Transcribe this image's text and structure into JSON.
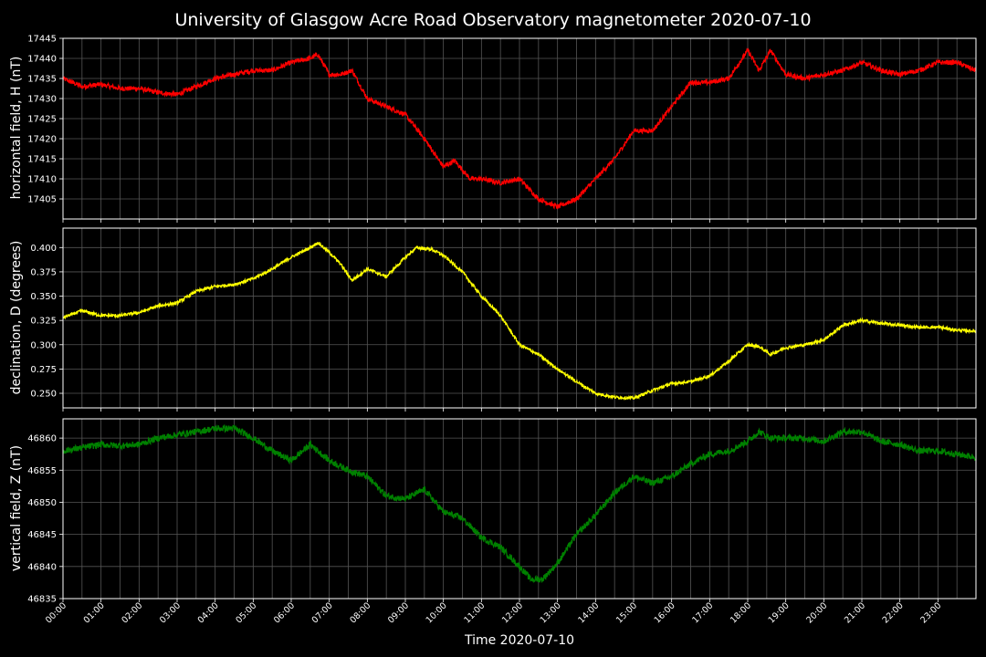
{
  "chart_data": {
    "type": "line",
    "title": "University of Glasgow Acre Road Observatory magnetometer 2020-07-10",
    "xlabel": "Time 2020-07-10",
    "x_ticks": [
      "00:00",
      "01:00",
      "02:00",
      "03:00",
      "04:00",
      "05:00",
      "06:00",
      "07:00",
      "08:00",
      "09:00",
      "10:00",
      "11:00",
      "12:00",
      "13:00",
      "14:00",
      "15:00",
      "16:00",
      "17:00",
      "18:00",
      "19:00",
      "20:00",
      "21:00",
      "22:00",
      "23:00"
    ],
    "x_range_hours": [
      0,
      24
    ],
    "grid": true,
    "panels": [
      {
        "ylabel": "horizontal field, H (nT)",
        "color": "#ff0000",
        "ylim": [
          17400,
          17445
        ],
        "yticks": [
          "17405",
          "17410",
          "17415",
          "17420",
          "17425",
          "17430",
          "17435",
          "17440",
          "17445"
        ],
        "ytick_values": [
          17405,
          17410,
          17415,
          17420,
          17425,
          17430,
          17435,
          17440,
          17445
        ],
        "noise": 0.6,
        "series": [
          {
            "values_hour": [
              0,
              0.5,
              1,
              1.5,
              2,
              2.5,
              3,
              3.5,
              4,
              4.5,
              5,
              5.5,
              6,
              6.5,
              6.7,
              7,
              7.3,
              7.6,
              8,
              8.5,
              9,
              9.5,
              10,
              10.3,
              10.7,
              11,
              11.5,
              12,
              12.5,
              13,
              13.5,
              14,
              14.5,
              15,
              15.5,
              16,
              16.5,
              17,
              17.5,
              18,
              18.3,
              18.6,
              19,
              19.5,
              20,
              20.5,
              21,
              21.5,
              22,
              22.5,
              23,
              23.5,
              24
            ],
            "values": [
              17435,
              17433,
              17433.5,
              17432.5,
              17432.5,
              17431.5,
              17431,
              17433,
              17435,
              17436,
              17437,
              17437,
              17439,
              17440,
              17441,
              17436,
              17436,
              17437,
              17430,
              17428,
              17426,
              17420,
              17413,
              17414.5,
              17410,
              17410,
              17409,
              17410,
              17405,
              17403,
              17405,
              17410,
              17415,
              17422,
              17422,
              17428,
              17434,
              17434,
              17435,
              17442,
              17437,
              17442,
              17436,
              17435,
              17436,
              17437,
              17439,
              17437,
              17436,
              17437,
              17439,
              17439,
              17437
            ]
          }
        ]
      },
      {
        "ylabel": "declination, D (degrees)",
        "color": "#ffff00",
        "ylim": [
          0.235,
          0.42
        ],
        "yticks": [
          "0.250",
          "0.275",
          "0.300",
          "0.325",
          "0.350",
          "0.375",
          "0.400"
        ],
        "ytick_values": [
          0.25,
          0.275,
          0.3,
          0.325,
          0.35,
          0.375,
          0.4
        ],
        "noise": 0.0015,
        "series": [
          {
            "values_hour": [
              0,
              0.5,
              1,
              1.5,
              2,
              2.5,
              3,
              3.5,
              4,
              4.5,
              5,
              5.5,
              6,
              6.5,
              6.7,
              7,
              7.3,
              7.6,
              8,
              8.5,
              9,
              9.3,
              9.7,
              10,
              10.5,
              11,
              11.5,
              12,
              12.5,
              13,
              13.5,
              14,
              14.5,
              15,
              15.5,
              16,
              16.5,
              17,
              17.5,
              18,
              18.3,
              18.6,
              19,
              19.5,
              20,
              20.5,
              21,
              21.5,
              22,
              22.5,
              23,
              23.5,
              24
            ],
            "values": [
              0.328,
              0.335,
              0.33,
              0.33,
              0.333,
              0.34,
              0.343,
              0.355,
              0.36,
              0.362,
              0.368,
              0.378,
              0.39,
              0.4,
              0.405,
              0.395,
              0.383,
              0.366,
              0.378,
              0.37,
              0.39,
              0.4,
              0.398,
              0.392,
              0.375,
              0.35,
              0.33,
              0.3,
              0.29,
              0.275,
              0.262,
              0.25,
              0.246,
              0.245,
              0.253,
              0.26,
              0.262,
              0.268,
              0.283,
              0.3,
              0.298,
              0.29,
              0.297,
              0.3,
              0.305,
              0.32,
              0.325,
              0.322,
              0.32,
              0.318,
              0.318,
              0.315,
              0.314
            ]
          }
        ]
      },
      {
        "ylabel": "vertical field, Z (nT)",
        "color": "#008000",
        "ylim": [
          46835,
          46863
        ],
        "yticks": [
          "46835",
          "46840",
          "46845",
          "46850",
          "46855",
          "46860"
        ],
        "ytick_values": [
          46835,
          46840,
          46845,
          46850,
          46855,
          46860
        ],
        "noise": 0.5,
        "series": [
          {
            "values_hour": [
              0,
              0.5,
              1,
              1.5,
              2,
              2.5,
              3,
              3.5,
              4,
              4.5,
              5,
              5.5,
              6,
              6.5,
              7,
              7.5,
              8,
              8.5,
              9,
              9.5,
              10,
              10.5,
              11,
              11.5,
              12,
              12.3,
              12.6,
              13,
              13.5,
              14,
              14.5,
              15,
              15.5,
              16,
              16.5,
              17,
              17.5,
              18,
              18.3,
              18.6,
              19,
              19.5,
              20,
              20.5,
              21,
              21.5,
              22,
              22.5,
              23,
              23.5,
              24
            ],
            "values": [
              46858,
              46858.5,
              46859,
              46858.8,
              46859,
              46860,
              46860.5,
              46861,
              46861.5,
              46861.5,
              46860,
              46858,
              46856.5,
              46859,
              46856.5,
              46855,
              46854,
              46851,
              46850.5,
              46852,
              46848.5,
              46847.5,
              46844.5,
              46843,
              46840,
              46838,
              46838,
              46840.5,
              46845,
              46848,
              46851.5,
              46854,
              46853,
              46854,
              46856,
              46857.5,
              46858,
              46859.5,
              46861,
              46860,
              46860,
              46860,
              46859.5,
              46861,
              46861,
              46859.5,
              46859,
              46858,
              46858,
              46857.5,
              46857
            ]
          }
        ]
      }
    ]
  }
}
